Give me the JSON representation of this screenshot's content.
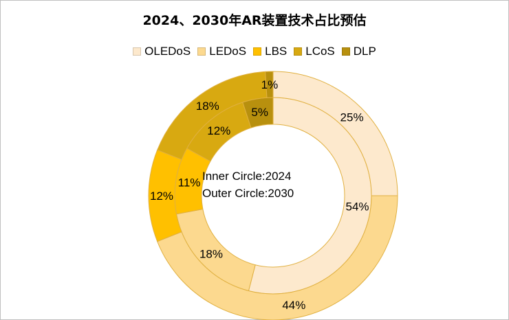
{
  "chart_data": {
    "type": "pie",
    "subtype": "doughnut",
    "title": "2024、2030年AR装置技术占比预估",
    "categories": [
      "OLEDoS",
      "LEDoS",
      "LBS",
      "LCoS",
      "DLP"
    ],
    "series": [
      {
        "year": "2024",
        "values": [
          54,
          18,
          11,
          12,
          5
        ]
      },
      {
        "year": "2030",
        "values": [
          25,
          44,
          12,
          18,
          1
        ]
      }
    ],
    "colors": [
      "#fde9cd",
      "#fcd98f",
      "#ffc000",
      "#d8a911",
      "#b8900e"
    ],
    "center_text": [
      "Inner Circle:2024",
      "Outer Circle:2030"
    ],
    "legend_position": "top"
  }
}
